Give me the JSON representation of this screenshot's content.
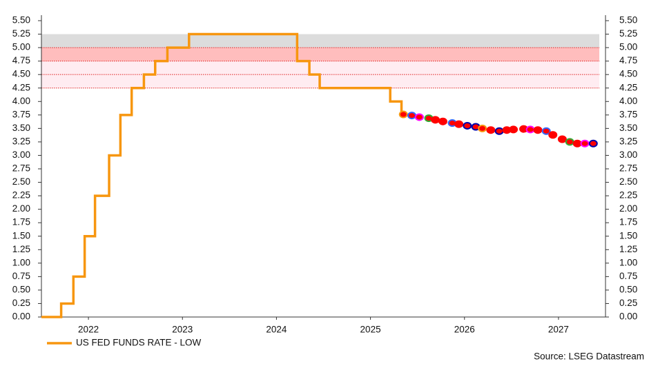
{
  "chart_data": {
    "type": "line",
    "xlim": [
      2022,
      2028
    ],
    "xticks": [
      {
        "value": 2022.5,
        "label": "2022"
      },
      {
        "value": 2023.5,
        "label": "2023"
      },
      {
        "value": 2024.5,
        "label": "2024"
      },
      {
        "value": 2025.5,
        "label": "2025"
      },
      {
        "value": 2026.5,
        "label": "2026"
      },
      {
        "value": 2027.5,
        "label": "2027"
      }
    ],
    "ylim": [
      0,
      5.5
    ],
    "yticks": [
      {
        "value": 0,
        "label": "0.00"
      },
      {
        "value": 0.25,
        "label": "0.25"
      },
      {
        "value": 0.5,
        "label": "0.50"
      },
      {
        "value": 0.75,
        "label": "0.75"
      },
      {
        "value": 1,
        "label": "1.00"
      },
      {
        "value": 1.25,
        "label": "1.25"
      },
      {
        "value": 1.5,
        "label": "1.50"
      },
      {
        "value": 1.75,
        "label": "1.75"
      },
      {
        "value": 2,
        "label": "2.00"
      },
      {
        "value": 2.25,
        "label": "2.25"
      },
      {
        "value": 2.5,
        "label": "2.50"
      },
      {
        "value": 2.75,
        "label": "2.75"
      },
      {
        "value": 3,
        "label": "3.00"
      },
      {
        "value": 3.25,
        "label": "3.25"
      },
      {
        "value": 3.5,
        "label": "3.50"
      },
      {
        "value": 3.75,
        "label": "3.75"
      },
      {
        "value": 4,
        "label": "4.00"
      },
      {
        "value": 4.25,
        "label": "4.25"
      },
      {
        "value": 4.5,
        "label": "4.50"
      },
      {
        "value": 4.75,
        "label": "4.75"
      },
      {
        "value": 5,
        "label": "5.00"
      },
      {
        "value": 5.25,
        "label": "5.25"
      },
      {
        "value": 5.5,
        "label": "5.50"
      }
    ],
    "bands": [
      {
        "from": 5,
        "to": 5.25,
        "color": "#dcdcdc"
      },
      {
        "from": 4.75,
        "to": 5,
        "color": "#ffbdbd"
      },
      {
        "from": 4.25,
        "to": 4.75,
        "color": "#ffecf1"
      }
    ],
    "ref_lines": [
      5,
      4.75,
      4.5,
      4.25
    ],
    "ref_color": "#e02020",
    "series": [
      {
        "name": "US FED FUNDS RATE - LOW",
        "color": "#f7960f",
        "style": "step",
        "x": [
          2022,
          2022.21,
          2022.34,
          2022.46,
          2022.57,
          2022.72,
          2022.84,
          2022.96,
          2023.09,
          2023.21,
          2023.34,
          2023.57,
          2024.72,
          2024.85,
          2024.96,
          2025.71,
          2025.83,
          2025.85
        ],
        "values": [
          0,
          0.25,
          0.75,
          1.5,
          2.25,
          3,
          3.75,
          4.25,
          4.5,
          4.75,
          5,
          5.25,
          4.75,
          4.5,
          4.25,
          4,
          3.75,
          3.75
        ]
      },
      {
        "color": "#ff0000",
        "style": "markers",
        "marker_outlines": [
          "#f7960f",
          "#3366ff",
          "#ff00ff",
          "#33aa33",
          "#ff0000",
          "#ff0000",
          "#3366ff",
          "#ff0000",
          "#0000aa",
          "#0000aa",
          "#f7960f",
          "#ff0000",
          "#0000aa",
          "#ff0000",
          "#ff0000",
          "#ff0000",
          "#ff00ff",
          "#ff0000",
          "#3366ff",
          "#ff0000",
          "#ff0000",
          "#33aa33",
          "#ff0000",
          "#ff00ff",
          "#0000aa"
        ],
        "x": [
          2025.85,
          2025.94,
          2026.02,
          2026.12,
          2026.19,
          2026.27,
          2026.37,
          2026.44,
          2026.53,
          2026.62,
          2026.69,
          2026.78,
          2026.87,
          2026.95,
          2027.02,
          2027.13,
          2027.2,
          2027.28,
          2027.37,
          2027.44,
          2027.54,
          2027.62,
          2027.7,
          2027.78,
          2027.87
        ],
        "values": [
          3.76,
          3.74,
          3.71,
          3.69,
          3.66,
          3.63,
          3.6,
          3.58,
          3.55,
          3.53,
          3.5,
          3.47,
          3.45,
          3.47,
          3.48,
          3.49,
          3.48,
          3.47,
          3.45,
          3.38,
          3.3,
          3.25,
          3.22,
          3.22,
          3.22
        ]
      }
    ],
    "source": "Source: LSEG Datastream"
  }
}
